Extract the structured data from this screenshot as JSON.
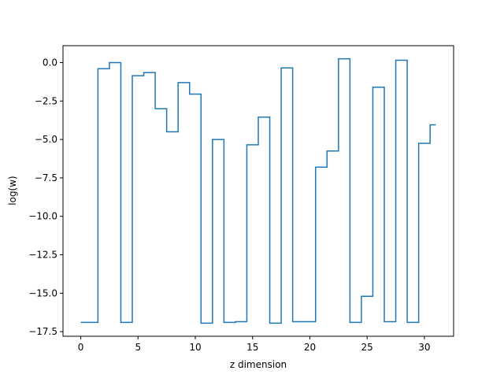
{
  "chart_data": {
    "type": "line",
    "drawstyle": "steps-mid",
    "title": "",
    "xlabel": "z dimension",
    "ylabel": "log(w)",
    "xlim": [
      -1.55,
      32.55
    ],
    "ylim": [
      -17.8,
      1.1
    ],
    "grid": false,
    "color": "#1f77b4",
    "xticks": [
      0,
      5,
      10,
      15,
      20,
      25,
      30
    ],
    "xtick_labels": [
      "0",
      "5",
      "10",
      "15",
      "20",
      "25",
      "30"
    ],
    "yticks": [
      0,
      -2.5,
      -5,
      -7.5,
      -10,
      -12.5,
      -15,
      -17.5
    ],
    "ytick_labels": [
      "0.0",
      "−2.5",
      "−5.0",
      "−7.5",
      "−10.0",
      "−12.5",
      "−15.0",
      "−17.5"
    ],
    "series": [
      {
        "x": [
          0,
          1,
          2,
          3,
          4,
          5,
          6,
          7,
          8,
          9,
          10,
          11,
          12,
          13,
          14,
          15,
          16,
          17,
          18,
          19,
          20,
          21,
          22,
          23,
          24,
          25,
          26,
          27,
          28,
          29,
          30,
          31
        ],
        "y": [
          -16.9,
          -16.9,
          -0.4,
          0.0,
          -16.9,
          -0.85,
          -0.65,
          -3.0,
          -4.5,
          -1.3,
          -2.05,
          -16.95,
          -5.0,
          -16.9,
          -16.85,
          -5.35,
          -3.55,
          -16.95,
          -0.35,
          -16.85,
          -16.85,
          -6.8,
          -5.75,
          0.25,
          -16.9,
          -15.2,
          -1.6,
          -16.85,
          0.15,
          -16.9,
          -5.25,
          -4.05
        ]
      }
    ]
  }
}
